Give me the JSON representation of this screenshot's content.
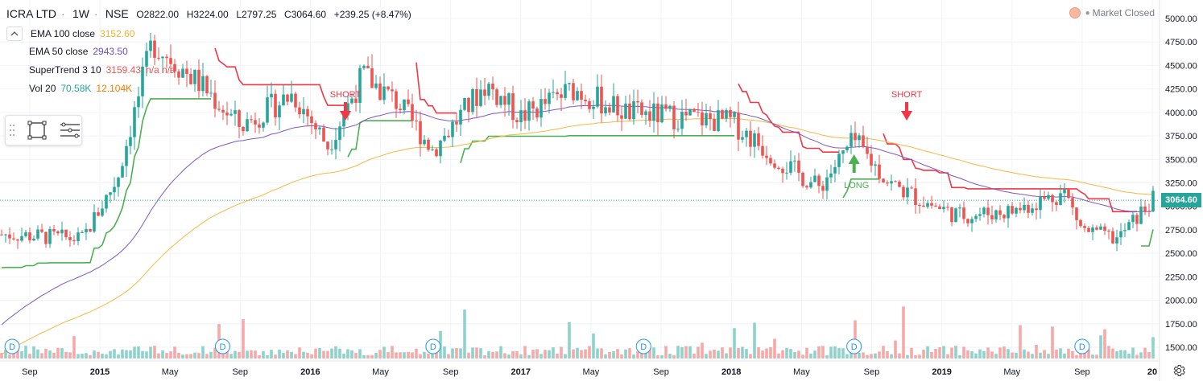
{
  "header": {
    "symbol": "ICRA LTD",
    "interval": "1W",
    "exchange": "NSE",
    "open": "O2822.00",
    "high": "H3224.00",
    "low": "L2797.25",
    "close": "C3064.60",
    "change": "+239.25 (+8.47%)"
  },
  "indicators": [
    {
      "label": "EMA 100 close",
      "value": "3152.60",
      "color": "#f0b232"
    },
    {
      "label": "EMA 50 close",
      "value": "2943.50",
      "color": "#6a4fc4"
    },
    {
      "label": "SuperTrend 3 10",
      "value": "3159.43",
      "extra": "n/a n/a",
      "color": "#ef5350"
    },
    {
      "label": "Vol 20",
      "value": "70.58K",
      "value2": "12.104K",
      "color": "#26a69a",
      "color2": "#f57c00"
    }
  ],
  "market_status": "Market Closed",
  "last_price": "3064.60",
  "colors": {
    "up": "#26a69a",
    "down": "#ef5350",
    "st_up": "#4caf50",
    "st_down": "#f23645",
    "ema100": "#f5b840",
    "ema50": "#7e57c2",
    "grid": "#f0f3fa",
    "dividend": "#2196f3"
  },
  "icons": {
    "toolbar_rect": "rectangle-icon",
    "toolbar_lines": "lines-icon",
    "settings": "gear-icon",
    "collapse": "chevron-up-icon",
    "dividend": "dividend-icon"
  },
  "chart_data": {
    "type": "candlestick",
    "y_axis_ticks": [
      "5000.00",
      "4750.00",
      "4500.00",
      "4250.00",
      "4000.00",
      "3750.00",
      "3500.00",
      "3250.00",
      "3000.00",
      "2750.00",
      "2500.00",
      "2250.00",
      "2000.00",
      "1750.00",
      "1500.00"
    ],
    "x_axis_ticks": [
      "Sep",
      "2015",
      "May",
      "Sep",
      "2016",
      "May",
      "Sep",
      "2017",
      "May",
      "Sep",
      "2018",
      "May",
      "Sep",
      "2019",
      "May",
      "Sep",
      "20"
    ],
    "ylim": [
      1400,
      5100
    ],
    "annotations": [
      {
        "text": "SHORT",
        "type": "sell"
      },
      {
        "text": "LONG",
        "type": "buy"
      },
      {
        "text": "SHORT",
        "type": "sell"
      }
    ],
    "dividend_marker": "D",
    "dividend_count": 6,
    "trend_anchors": [
      {
        "date": "2014-08",
        "close": 2700
      },
      {
        "date": "2014-12",
        "close": 2650
      },
      {
        "date": "2015-02",
        "close": 3300
      },
      {
        "date": "2015-04",
        "close": 4750
      },
      {
        "date": "2015-07",
        "close": 4250
      },
      {
        "date": "2015-09",
        "close": 3850
      },
      {
        "date": "2015-12",
        "close": 4200
      },
      {
        "date": "2016-02",
        "close": 3650
      },
      {
        "date": "2016-04",
        "close": 4400
      },
      {
        "date": "2016-06",
        "close": 4100
      },
      {
        "date": "2016-08",
        "close": 3600
      },
      {
        "date": "2016-11",
        "close": 4300
      },
      {
        "date": "2017-01",
        "close": 3950
      },
      {
        "date": "2017-04",
        "close": 4250
      },
      {
        "date": "2017-07",
        "close": 4000
      },
      {
        "date": "2017-10",
        "close": 3950
      },
      {
        "date": "2018-01",
        "close": 3900
      },
      {
        "date": "2018-04",
        "close": 3450
      },
      {
        "date": "2018-06",
        "close": 3200
      },
      {
        "date": "2018-08",
        "close": 3700
      },
      {
        "date": "2018-10",
        "close": 3250
      },
      {
        "date": "2018-12",
        "close": 3050
      },
      {
        "date": "2019-02",
        "close": 2900
      },
      {
        "date": "2019-05",
        "close": 2950
      },
      {
        "date": "2019-08",
        "close": 3150
      },
      {
        "date": "2019-09",
        "close": 2750
      },
      {
        "date": "2019-11",
        "close": 2650
      },
      {
        "date": "2020-01",
        "close": 3064.6
      }
    ]
  }
}
